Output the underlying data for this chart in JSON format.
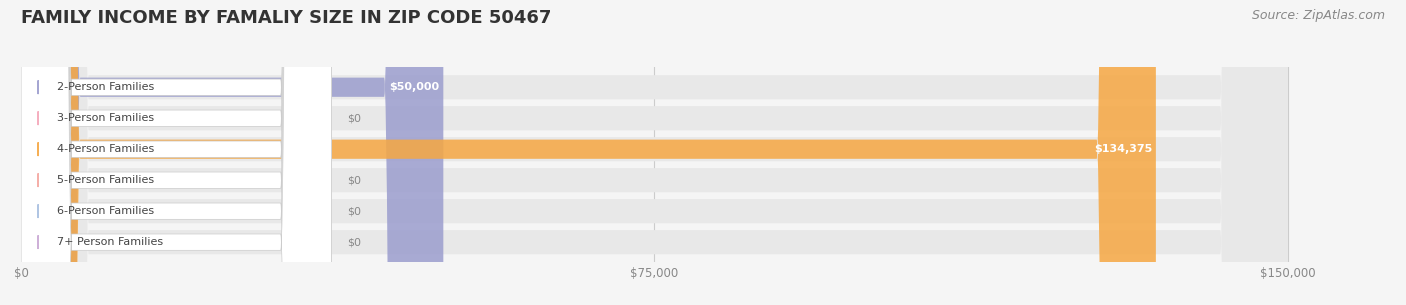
{
  "title": "FAMILY INCOME BY FAMALIY SIZE IN ZIP CODE 50467",
  "source": "Source: ZipAtlas.com",
  "categories": [
    "2-Person Families",
    "3-Person Families",
    "4-Person Families",
    "5-Person Families",
    "6-Person Families",
    "7+ Person Families"
  ],
  "values": [
    50000,
    0,
    134375,
    0,
    0,
    0
  ],
  "bar_colors": [
    "#9b9dce",
    "#f4a7b9",
    "#f5a742",
    "#f4a7a0",
    "#a8bfe0",
    "#c9a8d4"
  ],
  "value_labels": [
    "$50,000",
    "$0",
    "$134,375",
    "$0",
    "$0",
    "$0"
  ],
  "xlim": [
    0,
    150000
  ],
  "xticks": [
    0,
    75000,
    150000
  ],
  "xtick_labels": [
    "$0",
    "$75,000",
    "$150,000"
  ],
  "background_color": "#f5f5f5",
  "bar_bg_color": "#e8e8e8",
  "title_fontsize": 13,
  "source_fontsize": 9
}
